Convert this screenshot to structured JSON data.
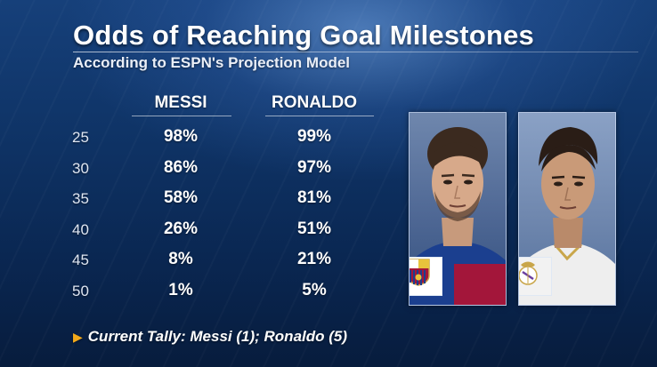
{
  "title": "Odds of Reaching Goal Milestones",
  "subtitle": "According to ESPN's Projection Model",
  "columns": {
    "messi": "MESSI",
    "ronaldo": "RONALDO"
  },
  "rows": [
    {
      "milestone": "25",
      "messi": "98%",
      "ronaldo": "99%"
    },
    {
      "milestone": "30",
      "messi": "86%",
      "ronaldo": "97%"
    },
    {
      "milestone": "35",
      "messi": "58%",
      "ronaldo": "81%"
    },
    {
      "milestone": "40",
      "messi": "26%",
      "ronaldo": "51%"
    },
    {
      "milestone": "45",
      "messi": "8%",
      "ronaldo": "21%"
    },
    {
      "milestone": "50",
      "messi": "1%",
      "ronaldo": "5%"
    }
  ],
  "footer": "Current Tally: Messi (1); Ronaldo (5)",
  "colors": {
    "accent_triangle": "#f2a91b",
    "barcelona_blue": "#1b3f8f",
    "barcelona_red": "#a3163a",
    "real_madrid_gold": "#c9a64a"
  },
  "icons": {
    "messi_photo": "messi-portrait-icon",
    "ronaldo_photo": "ronaldo-portrait-icon",
    "barcelona_crest": "fc-barcelona-crest-icon",
    "real_madrid_crest": "real-madrid-crest-icon",
    "footer_marker": "triangle-right-icon"
  }
}
